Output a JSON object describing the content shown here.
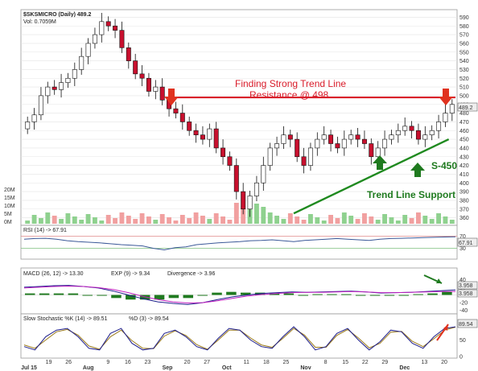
{
  "chart_data": [
    {
      "type": "candlestick",
      "panel": "price",
      "title": "$SKSMICRO (Daily) 489.2",
      "volume_label": "Vol: 0.7059M",
      "x_ticks": [
        "Jul 15",
        "19",
        "26",
        "Aug",
        "9",
        "16",
        "23",
        "Sep",
        "20",
        "27",
        "Oct",
        "11",
        "18",
        "25",
        "Nov",
        "8",
        "15",
        "22",
        "29",
        "Dec",
        "13",
        "20"
      ],
      "x_months": [
        "Jul",
        "Aug",
        "Sep",
        "Oct",
        "Nov",
        "Dec"
      ],
      "y_ticks": [
        590,
        580,
        570,
        560,
        550,
        540,
        530,
        520,
        510,
        500,
        490,
        480,
        470,
        460,
        450,
        440,
        430,
        420,
        410,
        400,
        390,
        380,
        370,
        360
      ],
      "ylim": [
        355,
        595
      ],
      "last_price": "489.2",
      "close_series": [
        470,
        478,
        500,
        510,
        507,
        515,
        520,
        530,
        545,
        560,
        570,
        585,
        580,
        575,
        555,
        540,
        525,
        520,
        505,
        510,
        495,
        485,
        480,
        470,
        460,
        455,
        450,
        462,
        440,
        430,
        420,
        390,
        370,
        385,
        400,
        420,
        440,
        445,
        455,
        450,
        430,
        420,
        440,
        450,
        455,
        445,
        440,
        450,
        455,
        450,
        445,
        430,
        440,
        450,
        455,
        460,
        465,
        460,
        450,
        455,
        460,
        470,
        480,
        490
      ],
      "volume_ticks": [
        "20M",
        "15M",
        "10M",
        "5M",
        "0M"
      ],
      "annotations": {
        "resistance": "Finding Strong Trend Line Resistance @ 498",
        "support_value": "S-450",
        "support_label": "Trend Line Support"
      },
      "resistance_level": 498,
      "support_line": {
        "from": [
          40,
          365
        ],
        "to": [
          63,
          450
        ]
      }
    },
    {
      "type": "line",
      "panel": "rsi",
      "legend": "RSI (14) -> 67.91",
      "last_value": "67.91",
      "y_ticks": [
        70,
        30
      ],
      "ylim": [
        0,
        100
      ],
      "values": [
        60,
        62,
        63,
        60,
        55,
        52,
        50,
        48,
        45,
        42,
        40,
        38,
        30,
        25,
        32,
        35,
        42,
        45,
        48,
        50,
        52,
        55,
        56,
        58,
        55,
        52,
        56,
        58,
        60,
        62,
        60,
        58,
        56,
        60,
        62,
        63,
        64,
        65,
        66,
        67,
        68
      ]
    },
    {
      "type": "line",
      "panel": "macd",
      "legend_macd": "MACD (26, 12) -> 13.30",
      "legend_exp": "EXP (9) -> 9.34",
      "legend_div": "Divergence -> 3.96",
      "last_values": [
        "3.958",
        "3.958"
      ],
      "y_ticks": [
        40,
        20,
        0,
        -20,
        -40
      ],
      "ylim": [
        -45,
        45
      ],
      "macd": [
        20,
        22,
        24,
        25,
        22,
        18,
        10,
        0,
        -10,
        -18,
        -22,
        -25,
        -20,
        -12,
        -5,
        0,
        4,
        6,
        8,
        7,
        8,
        9,
        10,
        8,
        5,
        6,
        7,
        9,
        11,
        13
      ],
      "signal": [
        18,
        20,
        22,
        23,
        22,
        19,
        14,
        6,
        -4,
        -12,
        -18,
        -21,
        -20,
        -15,
        -9,
        -3,
        1,
        4,
        6,
        7,
        7,
        8,
        9,
        8,
        6,
        6,
        7,
        8,
        9,
        9
      ],
      "divergence": [
        2,
        2,
        2,
        2,
        0,
        -1,
        -4,
        -6,
        -6,
        -6,
        -4,
        -4,
        0,
        3,
        4,
        3,
        3,
        2,
        2,
        0,
        1,
        1,
        1,
        0,
        -1,
        0,
        0,
        1,
        2,
        4
      ]
    },
    {
      "type": "line",
      "panel": "stochastic",
      "legend_k": "Slow Stochastic %K (14) -> 89.51",
      "legend_d": "%D (3) -> 89.54",
      "last_value": "89.54",
      "y_ticks": [
        50,
        0
      ],
      "ylim": [
        0,
        100
      ],
      "k_values": [
        30,
        20,
        60,
        80,
        85,
        60,
        25,
        20,
        70,
        85,
        40,
        20,
        25,
        70,
        80,
        60,
        30,
        20,
        55,
        85,
        80,
        50,
        30,
        25,
        60,
        90,
        60,
        20,
        30,
        70,
        85,
        50,
        20,
        45,
        80,
        75,
        40,
        25,
        60,
        85,
        90
      ],
      "d_values": [
        35,
        25,
        50,
        75,
        82,
        65,
        32,
        22,
        60,
        80,
        48,
        25,
        24,
        62,
        78,
        64,
        36,
        22,
        50,
        80,
        80,
        56,
        35,
        28,
        55,
        85,
        65,
        28,
        28,
        64,
        82,
        56,
        26,
        40,
        74,
        76,
        46,
        30,
        54,
        80,
        89
      ]
    }
  ],
  "colors": {
    "up": "#ffffff",
    "down": "#c8102e",
    "wick": "#111111",
    "resistance": "#d91c2a",
    "support": "#1f8a1f",
    "rsi_line": "#3b5998",
    "macd_line": "#1e1e8c",
    "signal_line": "#c020c0",
    "div_bar": "#1f7a1f",
    "stoch_k": "#1e1e8c",
    "stoch_d": "#9a7a1a",
    "vol_up": "#8fd18f",
    "vol_down": "#f1a0a0"
  }
}
